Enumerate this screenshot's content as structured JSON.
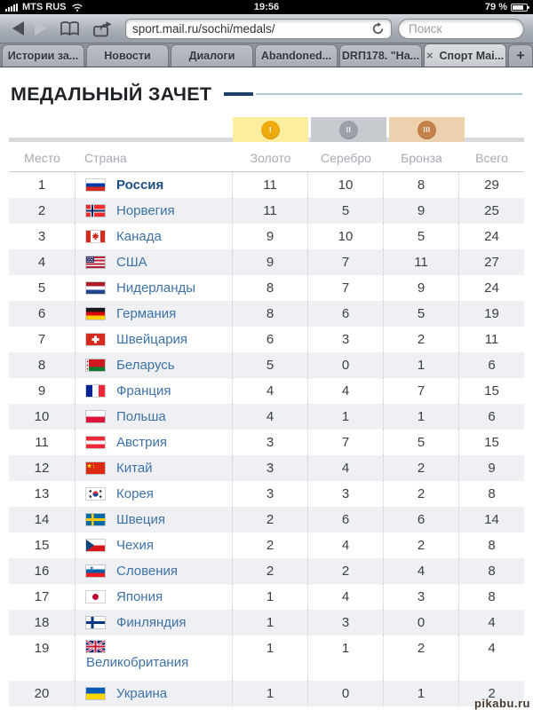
{
  "status_bar": {
    "carrier": "MTS RUS",
    "time": "19:56",
    "battery_percent": "79 %"
  },
  "browser": {
    "url": "sport.mail.ru/sochi/medals/",
    "search_placeholder": "Поиск",
    "tab_close_symbol": "×",
    "new_tab_label": "+",
    "tabs": [
      {
        "label": "Истории за...",
        "active": false
      },
      {
        "label": "Новости",
        "active": false
      },
      {
        "label": "Диалоги",
        "active": false
      },
      {
        "label": "Abandoned...",
        "active": false
      },
      {
        "label": "DRП178. \"На...",
        "active": false
      },
      {
        "label": "Спорт Mai...",
        "active": true
      }
    ]
  },
  "page": {
    "title": "МЕДАЛЬНЫЙ ЗАЧЕТ",
    "watermark": "pikabu.ru"
  },
  "medal_legend": [
    {
      "name": "gold",
      "numeral": "I",
      "block_color": "#fcee9e",
      "circle_color": "#eeab10"
    },
    {
      "name": "silver",
      "numeral": "II",
      "block_color": "#c7cbd0",
      "circle_color": "#9ca1a7"
    },
    {
      "name": "bronze",
      "numeral": "III",
      "block_color": "#edd0ae",
      "circle_color": "#c5814a"
    }
  ],
  "table": {
    "headers": [
      "Место",
      "Страна",
      "Золото",
      "Серебро",
      "Бронза",
      "Всего"
    ],
    "rows": [
      {
        "place": 1,
        "country": "Россия",
        "flag": "ru",
        "gold": 11,
        "silver": 10,
        "bronze": 8,
        "total": 29,
        "highlight": true
      },
      {
        "place": 2,
        "country": "Норвегия",
        "flag": "no",
        "gold": 11,
        "silver": 5,
        "bronze": 9,
        "total": 25
      },
      {
        "place": 3,
        "country": "Канада",
        "flag": "ca",
        "gold": 9,
        "silver": 10,
        "bronze": 5,
        "total": 24
      },
      {
        "place": 4,
        "country": "США",
        "flag": "us",
        "gold": 9,
        "silver": 7,
        "bronze": 11,
        "total": 27
      },
      {
        "place": 5,
        "country": "Нидерланды",
        "flag": "nl",
        "gold": 8,
        "silver": 7,
        "bronze": 9,
        "total": 24
      },
      {
        "place": 6,
        "country": "Германия",
        "flag": "de",
        "gold": 8,
        "silver": 6,
        "bronze": 5,
        "total": 19
      },
      {
        "place": 7,
        "country": "Швейцария",
        "flag": "ch",
        "gold": 6,
        "silver": 3,
        "bronze": 2,
        "total": 11
      },
      {
        "place": 8,
        "country": "Беларусь",
        "flag": "by",
        "gold": 5,
        "silver": 0,
        "bronze": 1,
        "total": 6
      },
      {
        "place": 9,
        "country": "Франция",
        "flag": "fr",
        "gold": 4,
        "silver": 4,
        "bronze": 7,
        "total": 15
      },
      {
        "place": 10,
        "country": "Польша",
        "flag": "pl",
        "gold": 4,
        "silver": 1,
        "bronze": 1,
        "total": 6
      },
      {
        "place": 11,
        "country": "Австрия",
        "flag": "at",
        "gold": 3,
        "silver": 7,
        "bronze": 5,
        "total": 15
      },
      {
        "place": 12,
        "country": "Китай",
        "flag": "cn",
        "gold": 3,
        "silver": 4,
        "bronze": 2,
        "total": 9
      },
      {
        "place": 13,
        "country": "Корея",
        "flag": "kr",
        "gold": 3,
        "silver": 3,
        "bronze": 2,
        "total": 8
      },
      {
        "place": 14,
        "country": "Швеция",
        "flag": "se",
        "gold": 2,
        "silver": 6,
        "bronze": 6,
        "total": 14
      },
      {
        "place": 15,
        "country": "Чехия",
        "flag": "cz",
        "gold": 2,
        "silver": 4,
        "bronze": 2,
        "total": 8
      },
      {
        "place": 16,
        "country": "Словения",
        "flag": "si",
        "gold": 2,
        "silver": 2,
        "bronze": 4,
        "total": 8
      },
      {
        "place": 17,
        "country": "Япония",
        "flag": "jp",
        "gold": 1,
        "silver": 4,
        "bronze": 3,
        "total": 8
      },
      {
        "place": 18,
        "country": "Финляндия",
        "flag": "fi",
        "gold": 1,
        "silver": 3,
        "bronze": 0,
        "total": 4
      },
      {
        "place": 19,
        "country": "Великобритания",
        "flag": "gb",
        "gold": 1,
        "silver": 1,
        "bronze": 2,
        "total": 4,
        "wrap": true
      },
      {
        "place": 20,
        "country": "Украина",
        "flag": "ua",
        "gold": 1,
        "silver": 0,
        "bronze": 1,
        "total": 2
      }
    ]
  }
}
